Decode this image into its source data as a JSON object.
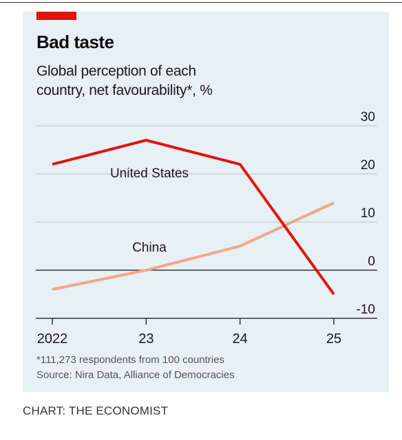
{
  "header": {
    "title": "Bad taste",
    "subtitle": "Global perception of each country, net favourability*, %"
  },
  "footer": {
    "note": "*111,273 respondents from 100 countries",
    "source": "Source: Nira Data, Alliance of Democracies",
    "credit": "CHART: THE ECONOMIST"
  },
  "colors": {
    "united_states": "#e3120b",
    "china": "#f5a58d",
    "accent": "#e3120b",
    "background": "#e7f0f5"
  },
  "chart_data": {
    "type": "line",
    "title": "Bad taste",
    "subtitle": "Global perception of each country, net favourability*, %",
    "x": [
      2022,
      2023,
      2024,
      2025
    ],
    "x_tick_labels": [
      "2022",
      "23",
      "24",
      "25"
    ],
    "y_ticks": [
      30,
      20,
      10,
      0,
      -10
    ],
    "y_tick_labels": [
      "30",
      "20",
      "10",
      "0",
      "-10"
    ],
    "ylim": [
      -10,
      30
    ],
    "grid": true,
    "series": [
      {
        "name": "United States",
        "values": [
          22,
          27,
          22,
          -5
        ]
      },
      {
        "name": "China",
        "values": [
          -4,
          0,
          5,
          14
        ]
      }
    ]
  }
}
